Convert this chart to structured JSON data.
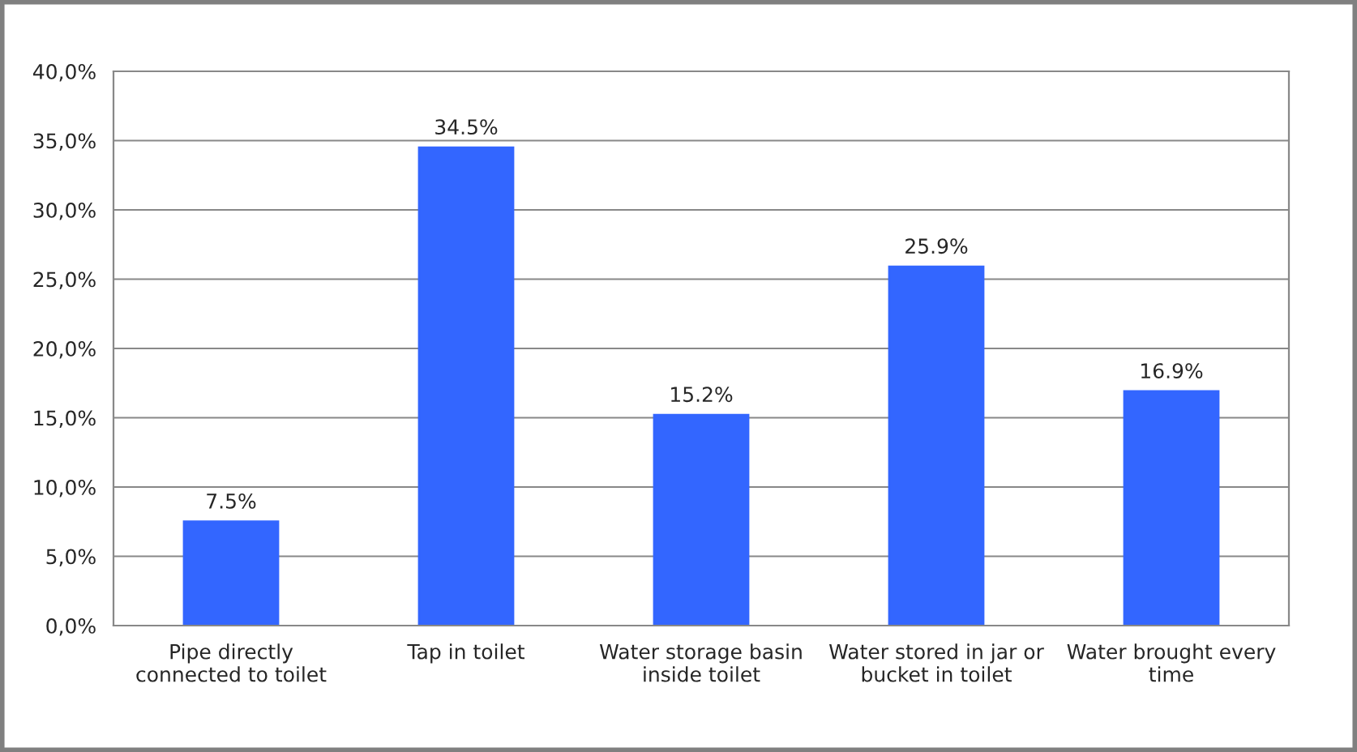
{
  "chart_data": {
    "type": "bar",
    "categories": [
      "Pipe directly\nconnected to toilet",
      "Tap in toilet",
      "Water storage basin\ninside toilet",
      "Water stored in jar or\nbucket in toilet",
      "Water brought every\ntime"
    ],
    "values": [
      7.5,
      34.5,
      15.2,
      25.9,
      16.9
    ],
    "value_labels": [
      "7.5%",
      "34.5%",
      "15.2%",
      "25.9%",
      "16.9%"
    ],
    "color": "#3366ff",
    "ylim": [
      0,
      40
    ],
    "yticks": [
      {
        "value": 0,
        "label": "0,0%"
      },
      {
        "value": 5,
        "label": "5,0%"
      },
      {
        "value": 10,
        "label": "10,0%"
      },
      {
        "value": 15,
        "label": "15,0%"
      },
      {
        "value": 20,
        "label": "20,0%"
      },
      {
        "value": 25,
        "label": "25,0%"
      },
      {
        "value": 30,
        "label": "30,0%"
      },
      {
        "value": 35,
        "label": "35,0%"
      },
      {
        "value": 40,
        "label": "40,0%"
      }
    ],
    "grid": "y"
  }
}
